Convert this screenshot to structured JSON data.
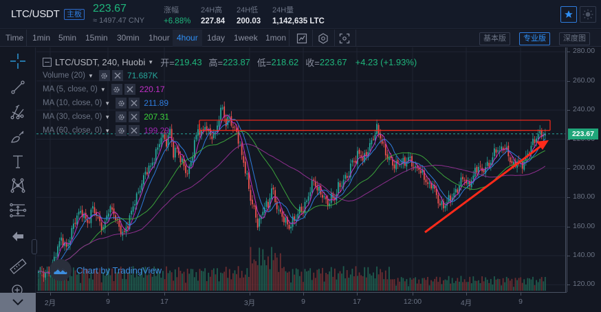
{
  "header": {
    "pair": "LTC/USDT",
    "board_tag": "主板",
    "last_price": "223.67",
    "cny_price": "≈ 1497.47 CNY",
    "stats": [
      {
        "label": "涨幅",
        "value": "+6.88%",
        "color": "green"
      },
      {
        "label": "24H高",
        "value": "227.84"
      },
      {
        "label": "24H低",
        "value": "200.03"
      },
      {
        "label": "24H量",
        "value": "1,142,635 LTC"
      }
    ],
    "favorite_icon": "star-icon",
    "theme_icon": "sun-icon"
  },
  "toolbar": {
    "timeframes": [
      "Time",
      "1min",
      "5min",
      "15min",
      "30min",
      "1hour",
      "4hour",
      "1day",
      "1week",
      "1mon"
    ],
    "active_timeframe": "4hour",
    "icons": [
      "chart-type-icon",
      "settings-hex-icon",
      "fullscreen-icon"
    ],
    "versions": [
      {
        "label": "基本版",
        "active": false
      },
      {
        "label": "专业版",
        "active": true
      },
      {
        "label": "深度图",
        "active": false
      }
    ]
  },
  "left_tools": [
    "crosshair-icon",
    "trend-line-icon",
    "pitchfork-icon",
    "brush-icon",
    "text-icon",
    "pattern-icon",
    "measure-fib-icon",
    "back-arrow-icon",
    "ruler-icon",
    "zoom-in-icon"
  ],
  "legend": {
    "symbol": "LTC/USDT, 240, Huobi",
    "ohlc": [
      {
        "k": "开=",
        "v": "219.43"
      },
      {
        "k": "高=",
        "v": "223.87"
      },
      {
        "k": "低=",
        "v": "218.62"
      },
      {
        "k": "收=",
        "v": "223.67"
      }
    ],
    "change": "+4.23 (+1.93%)",
    "indicators": [
      {
        "name": "Volume (20)",
        "value": "71.687K",
        "color": "#26a69a"
      },
      {
        "name": "MA (5, close, 0)",
        "value": "220.17",
        "color": "#c42fc9"
      },
      {
        "name": "MA (10, close, 0)",
        "value": "211.89",
        "color": "#2f7ddf"
      },
      {
        "name": "MA (30, close, 0)",
        "value": "207.31",
        "color": "#3bd33b"
      },
      {
        "name": "MA (60, close, 0)",
        "value": "199.29",
        "color": "#9c27b0"
      }
    ]
  },
  "price_axis": {
    "labels": [
      "280.00",
      "260.00",
      "240.00",
      "220.00",
      "200.00",
      "180.00",
      "160.00",
      "140.00",
      "120.00"
    ],
    "last_price_tag": "223.67"
  },
  "time_axis": {
    "labels": [
      "2月",
      "9",
      "17",
      "3月",
      "9",
      "17",
      "12:00",
      "4月",
      "9"
    ]
  },
  "watermark": "Chart by TradingView",
  "colors": {
    "up": "#26a69a",
    "down": "#ef5350",
    "accent": "#2f8ff5",
    "annotation": "#ff2a1a"
  },
  "chart_data": {
    "type": "candlestick",
    "title": "LTC/USDT, 240, Huobi",
    "ylim": [
      115,
      283
    ],
    "y_ticks": [
      120,
      140,
      160,
      180,
      200,
      220,
      240,
      260,
      280
    ],
    "x_ticks": [
      "2月",
      "9",
      "17",
      "3月",
      "9",
      "17",
      "12:00",
      "4月",
      "9"
    ],
    "close_path": [
      [
        0,
        128
      ],
      [
        8,
        126
      ],
      [
        14,
        132
      ],
      [
        20,
        142
      ],
      [
        26,
        150
      ],
      [
        32,
        146
      ],
      [
        38,
        158
      ],
      [
        44,
        166
      ],
      [
        50,
        170
      ],
      [
        56,
        164
      ],
      [
        62,
        172
      ],
      [
        68,
        164
      ],
      [
        74,
        160
      ],
      [
        80,
        172
      ],
      [
        86,
        168
      ],
      [
        92,
        160
      ],
      [
        98,
        156
      ],
      [
        104,
        164
      ],
      [
        110,
        178
      ],
      [
        116,
        188
      ],
      [
        122,
        196
      ],
      [
        128,
        200
      ],
      [
        134,
        212
      ],
      [
        140,
        222
      ],
      [
        146,
        216
      ],
      [
        150,
        226
      ],
      [
        154,
        212
      ],
      [
        158,
        214
      ],
      [
        162,
        205
      ],
      [
        166,
        200
      ],
      [
        170,
        196
      ],
      [
        174,
        206
      ],
      [
        178,
        218
      ],
      [
        182,
        226
      ],
      [
        186,
        222
      ],
      [
        190,
        230
      ],
      [
        196,
        224
      ],
      [
        202,
        222
      ],
      [
        206,
        234
      ],
      [
        210,
        242
      ],
      [
        214,
        232
      ],
      [
        218,
        236
      ],
      [
        222,
        226
      ],
      [
        226,
        224
      ],
      [
        230,
        214
      ],
      [
        234,
        206
      ],
      [
        238,
        194
      ],
      [
        242,
        178
      ],
      [
        246,
        170
      ],
      [
        250,
        162
      ],
      [
        254,
        168
      ],
      [
        258,
        176
      ],
      [
        262,
        172
      ],
      [
        266,
        186
      ],
      [
        270,
        178
      ],
      [
        274,
        172
      ],
      [
        278,
        168
      ],
      [
        282,
        162
      ],
      [
        286,
        158
      ],
      [
        290,
        164
      ],
      [
        294,
        168
      ],
      [
        298,
        172
      ],
      [
        302,
        170
      ],
      [
        306,
        176
      ],
      [
        310,
        186
      ],
      [
        314,
        194
      ],
      [
        318,
        186
      ],
      [
        322,
        182
      ],
      [
        326,
        178
      ],
      [
        330,
        176
      ],
      [
        334,
        182
      ],
      [
        338,
        180
      ],
      [
        342,
        186
      ],
      [
        346,
        188
      ],
      [
        350,
        194
      ],
      [
        354,
        198
      ],
      [
        358,
        206
      ],
      [
        362,
        204
      ],
      [
        366,
        210
      ],
      [
        370,
        206
      ],
      [
        374,
        212
      ],
      [
        378,
        216
      ],
      [
        382,
        220
      ],
      [
        386,
        226
      ],
      [
        390,
        222
      ],
      [
        394,
        216
      ],
      [
        398,
        208
      ],
      [
        402,
        204
      ],
      [
        406,
        200
      ],
      [
        410,
        204
      ],
      [
        414,
        206
      ],
      [
        418,
        204
      ],
      [
        422,
        206
      ],
      [
        426,
        202
      ],
      [
        430,
        200
      ],
      [
        434,
        202
      ],
      [
        438,
        196
      ],
      [
        442,
        190
      ],
      [
        446,
        186
      ],
      [
        450,
        190
      ],
      [
        454,
        182
      ],
      [
        458,
        176
      ],
      [
        462,
        172
      ],
      [
        466,
        176
      ],
      [
        470,
        180
      ],
      [
        474,
        184
      ],
      [
        478,
        186
      ],
      [
        482,
        190
      ],
      [
        486,
        192
      ],
      [
        490,
        188
      ],
      [
        494,
        194
      ],
      [
        498,
        198
      ],
      [
        502,
        200
      ],
      [
        506,
        196
      ],
      [
        510,
        202
      ],
      [
        514,
        204
      ],
      [
        518,
        208
      ],
      [
        522,
        212
      ],
      [
        526,
        210
      ],
      [
        530,
        216
      ],
      [
        534,
        214
      ],
      [
        538,
        206
      ],
      [
        542,
        200
      ],
      [
        546,
        204
      ],
      [
        550,
        202
      ],
      [
        554,
        206
      ],
      [
        558,
        210
      ],
      [
        562,
        214
      ],
      [
        566,
        218
      ],
      [
        570,
        224
      ],
      [
        574,
        226
      ],
      [
        578,
        222
      ],
      [
        582,
        224
      ]
    ],
    "ma_series": [
      {
        "name": "MA5",
        "color": "#c42fc9"
      },
      {
        "name": "MA10",
        "color": "#2f7ddf"
      },
      {
        "name": "MA30",
        "color": "#3bd33b"
      },
      {
        "name": "MA60",
        "color": "#9c27b0"
      }
    ],
    "annotations": [
      {
        "type": "rectangle",
        "price_top": 233,
        "price_bottom": 226,
        "x_start": 290
      },
      {
        "type": "arrow",
        "from": [
          618,
          338
        ],
        "to": [
          798,
          204
        ]
      }
    ],
    "last_close": 223.67
  }
}
